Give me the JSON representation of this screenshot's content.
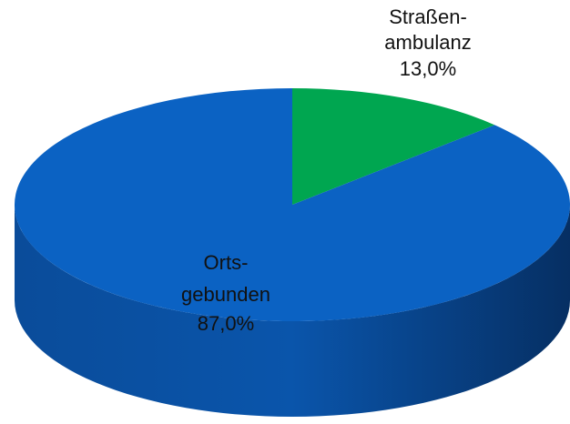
{
  "chart_data": {
    "type": "pie",
    "categories": [
      [
        "Straßen-",
        "ambulanz"
      ],
      [
        "Orts-",
        "gebunden"
      ]
    ],
    "values": [
      13,
      87
    ],
    "value_labels": [
      "13,0%",
      "87,0%"
    ],
    "colors": [
      "#00a650",
      "#0b62c3"
    ]
  }
}
